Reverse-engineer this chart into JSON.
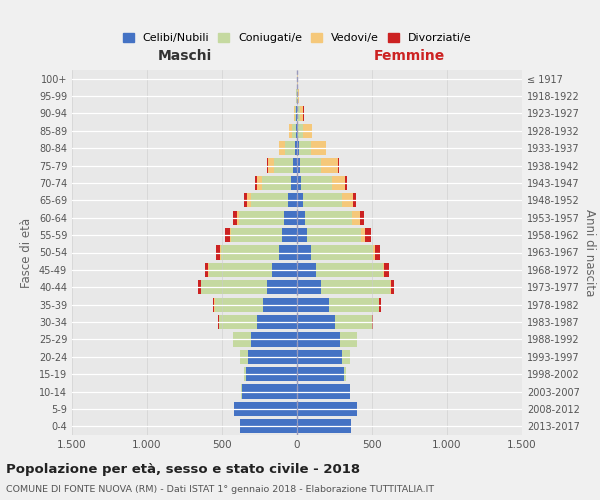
{
  "age_groups": [
    "0-4",
    "5-9",
    "10-14",
    "15-19",
    "20-24",
    "25-29",
    "30-34",
    "35-39",
    "40-44",
    "45-49",
    "50-54",
    "55-59",
    "60-64",
    "65-69",
    "70-74",
    "75-79",
    "80-84",
    "85-89",
    "90-94",
    "95-99",
    "100+"
  ],
  "birth_years": [
    "2013-2017",
    "2008-2012",
    "2003-2007",
    "1998-2002",
    "1993-1997",
    "1988-1992",
    "1983-1987",
    "1978-1982",
    "1973-1977",
    "1968-1972",
    "1963-1967",
    "1958-1962",
    "1953-1957",
    "1948-1952",
    "1943-1947",
    "1938-1942",
    "1933-1937",
    "1928-1932",
    "1923-1927",
    "1918-1922",
    "≤ 1917"
  ],
  "male": {
    "celibe": [
      380,
      420,
      370,
      340,
      330,
      310,
      270,
      230,
      200,
      170,
      120,
      100,
      85,
      60,
      40,
      25,
      12,
      6,
      4,
      2,
      1
    ],
    "coniugato": [
      1,
      2,
      5,
      12,
      48,
      115,
      250,
      320,
      440,
      420,
      390,
      340,
      300,
      250,
      195,
      130,
      70,
      30,
      12,
      4,
      2
    ],
    "vedovo": [
      0,
      0,
      0,
      0,
      0,
      0,
      0,
      1,
      2,
      3,
      5,
      8,
      15,
      25,
      35,
      40,
      35,
      18,
      6,
      2,
      0
    ],
    "divorziato": [
      0,
      0,
      0,
      0,
      0,
      2,
      8,
      12,
      20,
      22,
      28,
      32,
      25,
      18,
      12,
      7,
      4,
      2,
      1,
      0,
      0
    ]
  },
  "female": {
    "nubile": [
      360,
      400,
      350,
      315,
      300,
      285,
      250,
      210,
      160,
      125,
      90,
      68,
      52,
      38,
      27,
      17,
      10,
      5,
      3,
      2,
      1
    ],
    "coniugata": [
      1,
      2,
      4,
      13,
      50,
      115,
      250,
      335,
      460,
      450,
      415,
      360,
      315,
      260,
      205,
      145,
      85,
      38,
      15,
      4,
      2
    ],
    "vedova": [
      0,
      0,
      0,
      0,
      0,
      0,
      1,
      3,
      5,
      8,
      15,
      28,
      50,
      75,
      90,
      110,
      95,
      55,
      25,
      10,
      3
    ],
    "divorziata": [
      0,
      0,
      0,
      0,
      0,
      2,
      8,
      14,
      22,
      28,
      35,
      38,
      32,
      22,
      14,
      8,
      4,
      2,
      1,
      0,
      0
    ]
  },
  "colors": {
    "celibe_nubile": "#4472c4",
    "coniugato_a": "#c5d9a0",
    "vedovo_a": "#f5c87a",
    "divorziato_a": "#cc2222"
  },
  "xlim": 1500,
  "title": "Popolazione per età, sesso e stato civile - 2018",
  "subtitle": "COMUNE DI FONTE NUOVA (RM) - Dati ISTAT 1° gennaio 2018 - Elaborazione TUTTITALIA.IT",
  "ylabel_left": "Fasce di età",
  "ylabel_right": "Anni di nascita",
  "xlabel_left": "Maschi",
  "xlabel_right": "Femmine",
  "background_color": "#f0f0f0",
  "plot_bg_color": "#e8e8e8",
  "legend_labels": [
    "Celibi/Nubili",
    "Coniugati/e",
    "Vedovi/e",
    "Divorziati/e"
  ]
}
